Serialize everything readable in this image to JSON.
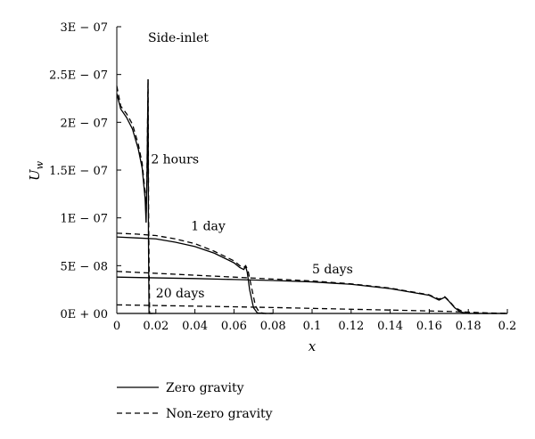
{
  "chart_data": {
    "type": "line",
    "title": "",
    "annotation": "Side-inlet",
    "xlabel": "x",
    "ylabel_base": "U",
    "ylabel_sub": "w",
    "xlim": [
      0,
      0.2
    ],
    "ylim": [
      0,
      3e-07
    ],
    "x_ticks": [
      0,
      0.02,
      0.04,
      0.06,
      0.08,
      0.1,
      0.12,
      0.14,
      0.16,
      0.18,
      0.2
    ],
    "x_tick_labels": [
      "0",
      "0.02",
      "0.04",
      "0.06",
      "0.08",
      "0.1",
      "0.12",
      "0.14",
      "0.16",
      "0.18",
      "0.2"
    ],
    "y_ticks": [
      0,
      5e-08,
      1e-07,
      1.5e-07,
      2e-07,
      2.5e-07,
      3e-07
    ],
    "y_tick_labels": [
      "0E + 00",
      "5E − 08",
      "1E − 07",
      "1.5E − 07",
      "2E − 07",
      "2.5E − 07",
      "3E − 07"
    ],
    "grid": false,
    "legend_position": "bottom-left, below axes",
    "legend": [
      {
        "label": "Zero gravity",
        "style": "solid"
      },
      {
        "label": "Non-zero gravity",
        "style": "dashed"
      }
    ],
    "curve_labels": [
      {
        "text": "2 hours",
        "x": 0.0175,
        "y": 1.57e-07
      },
      {
        "text": "1 day",
        "x": 0.038,
        "y": 8.7e-08
      },
      {
        "text": "5 days",
        "x": 0.1,
        "y": 4.2e-08
      },
      {
        "text": "20 days",
        "x": 0.02,
        "y": 1.7e-08
      }
    ],
    "series": [
      {
        "time": "2 hours",
        "gravity": "zero",
        "style": "solid",
        "x": [
          0,
          0.002,
          0.005,
          0.008,
          0.011,
          0.013,
          0.0145,
          0.015,
          0.0155,
          0.016,
          0.0162,
          0.0165,
          0.0172,
          0.02
        ],
        "y": [
          2.3e-07,
          2.14e-07,
          2.05e-07,
          1.93e-07,
          1.72e-07,
          1.52e-07,
          1.2e-07,
          9.5e-08,
          1.5e-07,
          2.45e-07,
          8e-08,
          0,
          0,
          0
        ]
      },
      {
        "time": "2 hours",
        "gravity": "non-zero",
        "style": "dashed",
        "x": [
          0,
          0.002,
          0.005,
          0.008,
          0.011,
          0.013,
          0.0145,
          0.015,
          0.0155,
          0.016,
          0.0163,
          0.0168,
          0.0175,
          0.02
        ],
        "y": [
          2.38e-07,
          2.17e-07,
          2.09e-07,
          1.98e-07,
          1.77e-07,
          1.57e-07,
          1.26e-07,
          1e-07,
          1.55e-07,
          2.45e-07,
          1e-07,
          0,
          0,
          0
        ]
      },
      {
        "time": "1 day",
        "gravity": "zero",
        "style": "solid",
        "x": [
          0,
          0.01,
          0.02,
          0.03,
          0.04,
          0.05,
          0.055,
          0.06,
          0.063,
          0.065,
          0.066,
          0.0668,
          0.068,
          0.07,
          0.072,
          0.075,
          0.08
        ],
        "y": [
          8e-08,
          7.9e-08,
          7.8e-08,
          7.45e-08,
          7e-08,
          6.3e-08,
          5.8e-08,
          5.3e-08,
          4.8e-08,
          4.6e-08,
          4.9e-08,
          4.3e-08,
          2.5e-08,
          6e-09,
          5e-10,
          0,
          0
        ]
      },
      {
        "time": "1 day",
        "gravity": "non-zero",
        "style": "dashed",
        "x": [
          0,
          0.01,
          0.02,
          0.03,
          0.04,
          0.05,
          0.055,
          0.06,
          0.063,
          0.065,
          0.066,
          0.0672,
          0.069,
          0.071,
          0.073,
          0.076,
          0.08
        ],
        "y": [
          8.4e-08,
          8.3e-08,
          8.15e-08,
          7.8e-08,
          7.3e-08,
          6.5e-08,
          6e-08,
          5.5e-08,
          5e-08,
          4.8e-08,
          5e-08,
          4.5e-08,
          2.7e-08,
          8e-09,
          1e-09,
          0,
          0
        ]
      },
      {
        "time": "5 days",
        "gravity": "zero",
        "style": "solid",
        "x": [
          0,
          0.02,
          0.04,
          0.06,
          0.08,
          0.1,
          0.12,
          0.14,
          0.15,
          0.16,
          0.165,
          0.168,
          0.17,
          0.173,
          0.176,
          0.18,
          0.19,
          0.2
        ],
        "y": [
          3.8e-08,
          3.72e-08,
          3.65e-08,
          3.55e-08,
          3.45e-08,
          3.3e-08,
          3.05e-08,
          2.6e-08,
          2.25e-08,
          1.9e-08,
          1.4e-08,
          1.7e-08,
          1.3e-08,
          6e-09,
          1.5e-09,
          0,
          0,
          0
        ]
      },
      {
        "time": "5 days",
        "gravity": "non-zero",
        "style": "dashed",
        "x": [
          0,
          0.02,
          0.04,
          0.06,
          0.08,
          0.1,
          0.12,
          0.14,
          0.15,
          0.16,
          0.165,
          0.168,
          0.17,
          0.173,
          0.177,
          0.181,
          0.19,
          0.2
        ],
        "y": [
          4.4e-08,
          4.2e-08,
          4e-08,
          3.8e-08,
          3.6e-08,
          3.4e-08,
          3.1e-08,
          2.65e-08,
          2.3e-08,
          1.95e-08,
          1.5e-08,
          1.75e-08,
          1.35e-08,
          6.5e-09,
          2e-09,
          0,
          0,
          0
        ]
      },
      {
        "time": "20 days",
        "gravity": "zero",
        "style": "solid",
        "x": [
          0,
          0.05,
          0.1,
          0.15,
          0.2
        ],
        "y": [
          0,
          0,
          0,
          0,
          0
        ]
      },
      {
        "time": "20 days",
        "gravity": "non-zero",
        "style": "dashed",
        "x": [
          0,
          0.02,
          0.05,
          0.08,
          0.1,
          0.12,
          0.15,
          0.17,
          0.18,
          0.19,
          0.2
        ],
        "y": [
          9e-09,
          8.3e-09,
          7.3e-09,
          6.2e-09,
          5.3e-09,
          4.4e-09,
          3.1e-09,
          2.1e-09,
          1.4e-09,
          5e-10,
          0
        ]
      }
    ]
  }
}
